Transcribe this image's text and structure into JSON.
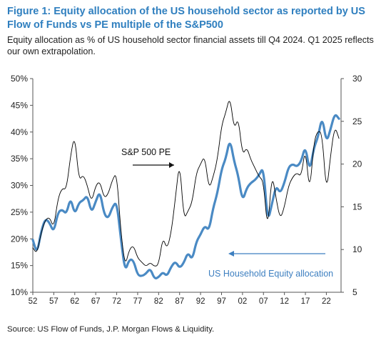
{
  "figure": {
    "title": "Figure 1: Equity allocation of the US household sector as reported by US Flow of Funds vs PE multiple of the S&P500",
    "subtitle": "Equity allocation as % of US household sector financial assets till Q4 2024. Q1 2025 reflects our own extrapolation.",
    "source": "Source: US Flow of Funds, J.P. Morgan Flows & Liquidity."
  },
  "colors": {
    "equity": "#4a8ac4",
    "pe": "#000000",
    "title": "#2f7fbf",
    "annotation_blue": "#3d7fc0"
  },
  "chart_data": {
    "type": "line",
    "x_ticks": [
      "52",
      "57",
      "62",
      "67",
      "72",
      "77",
      "82",
      "87",
      "92",
      "97",
      "02",
      "07",
      "12",
      "17",
      "22"
    ],
    "x_tick_years": [
      1952,
      1957,
      1962,
      1967,
      1972,
      1977,
      1982,
      1987,
      1992,
      1997,
      2002,
      2007,
      2012,
      2017,
      2022
    ],
    "xlim": [
      1952,
      2025.5
    ],
    "y_left": {
      "ticks": [
        "10%",
        "15%",
        "20%",
        "25%",
        "30%",
        "35%",
        "40%",
        "45%",
        "50%"
      ],
      "lim": [
        10,
        50
      ],
      "unit": "%"
    },
    "y_right": {
      "ticks": [
        "5",
        "10",
        "15",
        "20",
        "25",
        "30"
      ],
      "lim": [
        5,
        30
      ]
    },
    "legend": "none",
    "grid": false,
    "annotations": [
      {
        "text": "S&P 500 PE",
        "series": "pe"
      },
      {
        "text": "US Household Equity allocation",
        "series": "equity"
      }
    ],
    "series": [
      {
        "key": "equity",
        "axis": "left",
        "x": [
          1952,
          1953,
          1954,
          1955,
          1956,
          1957,
          1958,
          1959,
          1960,
          1961,
          1962,
          1963,
          1964,
          1965,
          1966,
          1967,
          1968,
          1969,
          1970,
          1971,
          1972,
          1973,
          1974,
          1975,
          1976,
          1977,
          1978,
          1979,
          1980,
          1981,
          1982,
          1983,
          1984,
          1985,
          1986,
          1987,
          1988,
          1989,
          1990,
          1991,
          1992,
          1993,
          1994,
          1995,
          1996,
          1997,
          1998,
          1999,
          2000,
          2001,
          2002,
          2003,
          2004,
          2005,
          2006,
          2007,
          2008,
          2009,
          2010,
          2011,
          2012,
          2013,
          2014,
          2015,
          2016,
          2017,
          2018,
          2019,
          2020,
          2021,
          2022,
          2023,
          2024,
          2025
        ],
        "values": [
          19.8,
          17.2,
          21.5,
          23.8,
          23.0,
          21.2,
          25.0,
          25.5,
          24.6,
          27.8,
          24.5,
          26.8,
          27.2,
          28.2,
          24.8,
          27.0,
          29.0,
          24.6,
          23.8,
          26.0,
          27.0,
          20.0,
          13.8,
          16.2,
          16.0,
          13.2,
          13.0,
          13.5,
          14.5,
          12.5,
          12.8,
          13.8,
          13.0,
          14.8,
          15.8,
          14.5,
          15.5,
          17.5,
          16.0,
          19.5,
          20.8,
          22.5,
          21.5,
          25.8,
          28.5,
          33.0,
          35.0,
          38.8,
          34.5,
          31.8,
          27.0,
          29.5,
          30.5,
          31.0,
          32.0,
          33.5,
          23.0,
          26.5,
          30.0,
          28.5,
          30.5,
          33.5,
          34.0,
          33.5,
          34.5,
          37.5,
          32.5,
          37.0,
          39.0,
          43.0,
          38.0,
          40.5,
          43.5,
          42.5
        ]
      },
      {
        "key": "pe",
        "axis": "right",
        "x": [
          1952,
          1953,
          1954,
          1955,
          1956,
          1957,
          1958,
          1959,
          1960,
          1961,
          1962,
          1963,
          1964,
          1965,
          1966,
          1967,
          1968,
          1969,
          1970,
          1971,
          1972,
          1973,
          1974,
          1975,
          1976,
          1977,
          1978,
          1979,
          1980,
          1981,
          1982,
          1983,
          1984,
          1985,
          1986,
          1987,
          1988,
          1989,
          1990,
          1991,
          1992,
          1993,
          1994,
          1995,
          1996,
          1997,
          1998,
          1999,
          2000,
          2001,
          2002,
          2003,
          2004,
          2005,
          2006,
          2007,
          2008,
          2009,
          2010,
          2011,
          2012,
          2013,
          2014,
          2015,
          2016,
          2017,
          2018,
          2019,
          2020,
          2021,
          2022,
          2023,
          2024,
          2025
        ],
        "values": [
          10.2,
          9.5,
          12.0,
          13.5,
          13.8,
          12.5,
          16.0,
          17.2,
          17.0,
          21.0,
          23.5,
          18.0,
          18.8,
          17.5,
          15.5,
          17.5,
          18.0,
          16.0,
          16.5,
          18.2,
          19.0,
          12.0,
          8.0,
          10.0,
          10.5,
          9.0,
          8.5,
          8.0,
          8.5,
          8.0,
          8.2,
          11.5,
          10.0,
          12.0,
          16.0,
          20.5,
          13.5,
          14.5,
          15.5,
          19.0,
          20.0,
          21.0,
          17.0,
          18.5,
          20.5,
          24.5,
          26.0,
          28.0,
          24.0,
          25.5,
          21.0,
          22.0,
          20.5,
          19.5,
          18.5,
          18.0,
          12.0,
          19.0,
          16.0,
          13.5,
          15.0,
          17.5,
          18.5,
          19.0,
          18.5,
          22.0,
          16.5,
          22.5,
          24.0,
          23.5,
          16.5,
          21.0,
          24.5,
          23.0
        ]
      }
    ]
  }
}
